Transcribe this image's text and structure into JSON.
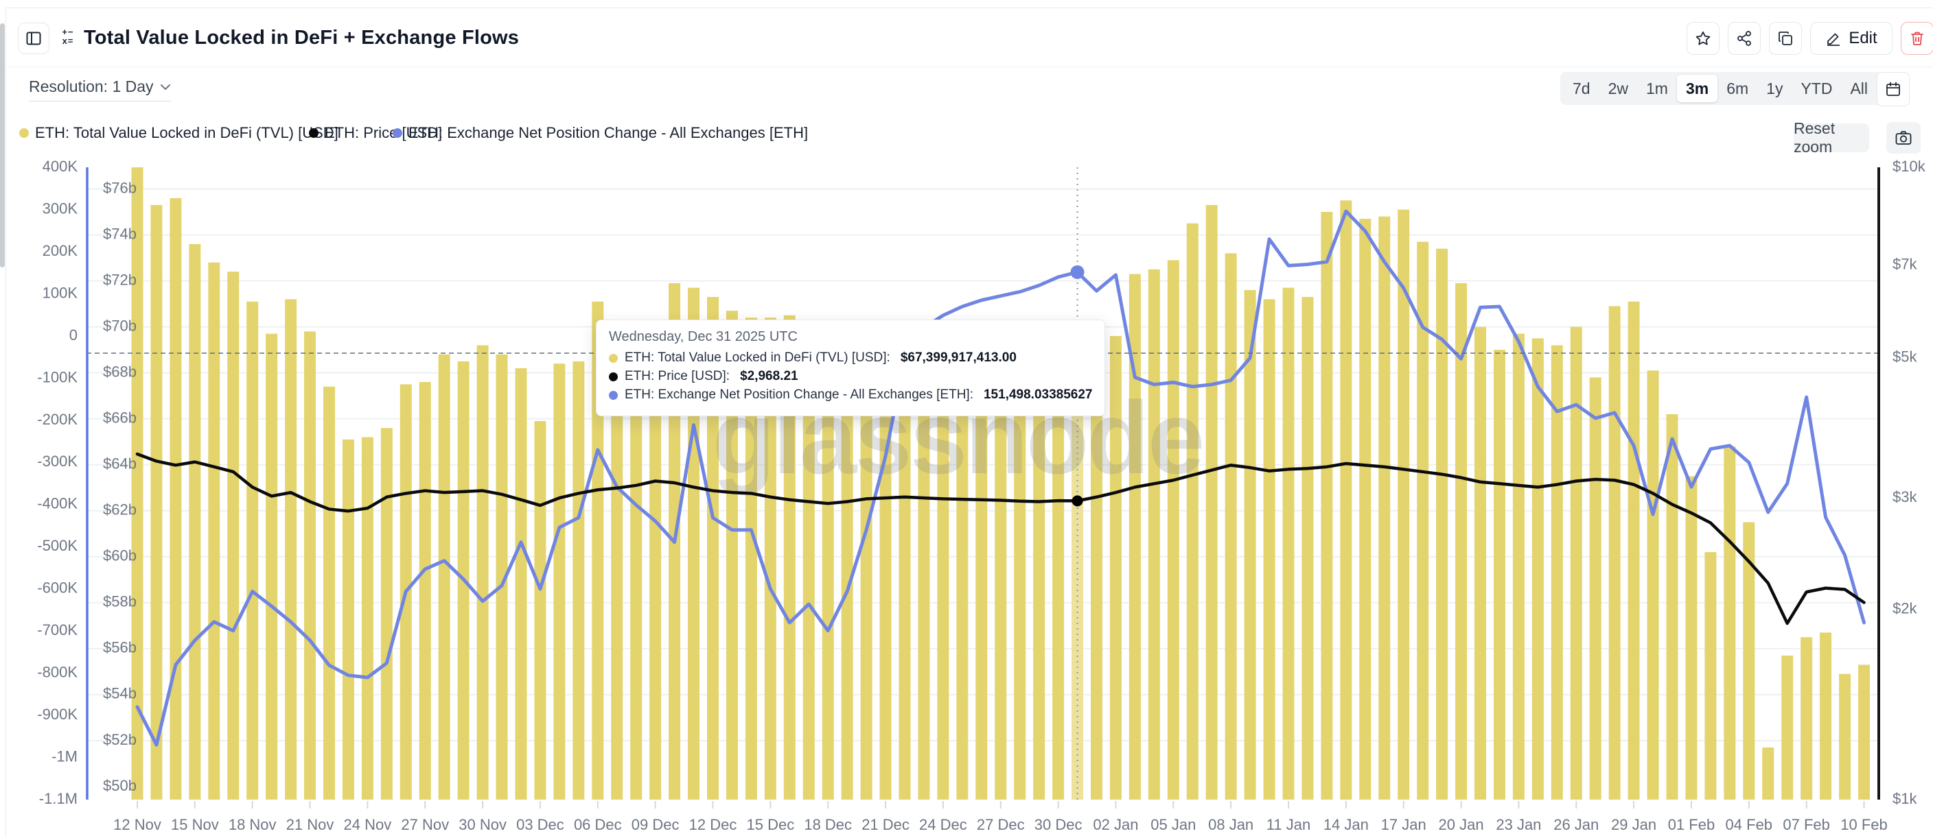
{
  "header": {
    "title": "Total Value Locked in DeFi + Exchange Flows",
    "edit_label": "Edit"
  },
  "toolbar": {
    "resolution_label": "Resolution: 1 Day",
    "ranges": [
      "7d",
      "2w",
      "1m",
      "3m",
      "6m",
      "1y",
      "YTD",
      "All"
    ],
    "active_range": "3m",
    "reset_zoom_label": "Reset zoom"
  },
  "legend": [
    {
      "label": "ETH: Total Value Locked in DeFi (TVL) [USD]",
      "color": "#e4d46d"
    },
    {
      "label": "ETH: Price [USD]",
      "color": "#0b0b0c"
    },
    {
      "label": "ETH: Exchange Net Position Change - All Exchanges [ETH]",
      "color": "#7085e2"
    }
  ],
  "tooltip": {
    "date": "Wednesday, Dec 31 2025 UTC",
    "rows": [
      {
        "label": "ETH: Total Value Locked in DeFi (TVL) [USD]:",
        "value": "$67,399,917,413.00",
        "color": "#e4d46d"
      },
      {
        "label": "ETH: Price [USD]:",
        "value": "$2,968.21",
        "color": "#0b0b0c"
      },
      {
        "label": "ETH: Exchange Net Position Change - All Exchanges [ETH]:",
        "value": "151,498.03385627",
        "color": "#7085e2"
      }
    ]
  },
  "watermark": "glassnode",
  "chart_data": {
    "type": "bar",
    "title": "Total Value Locked in DeFi + Exchange Flows",
    "x_tick_labels": [
      "12 Nov",
      "15 Nov",
      "18 Nov",
      "21 Nov",
      "24 Nov",
      "27 Nov",
      "30 Nov",
      "03 Dec",
      "06 Dec",
      "09 Dec",
      "12 Dec",
      "15 Dec",
      "18 Dec",
      "21 Dec",
      "24 Dec",
      "27 Dec",
      "30 Dec",
      "02 Jan",
      "05 Jan",
      "08 Jan",
      "11 Jan",
      "14 Jan",
      "17 Jan",
      "20 Jan",
      "23 Jan",
      "26 Jan",
      "29 Jan",
      "01 Feb",
      "04 Feb",
      "07 Feb",
      "10 Feb"
    ],
    "x_tick_every_days": 3,
    "hover": {
      "index": 49,
      "date": "Wednesday, Dec 31 2025 UTC",
      "tvl_usd": 67399917413.0,
      "price_usd": 2968.21,
      "flows_eth": 151498.03385627
    },
    "series": [
      {
        "name": "ETH: Total Value Locked in DeFi (TVL) [USD]",
        "type": "bar",
        "axis": "tvl_left_inner",
        "color": "#e4d46d",
        "hover_color": "#ece29c",
        "unit": "USD billions",
        "values": [
          77.2,
          75.3,
          75.6,
          73.6,
          72.8,
          72.4,
          71.1,
          69.7,
          71.2,
          69.8,
          67.4,
          65.1,
          65.2,
          65.6,
          67.5,
          67.6,
          68.8,
          68.5,
          69.2,
          68.8,
          68.2,
          65.9,
          68.4,
          68.5,
          71.1,
          70.3,
          69.7,
          69.8,
          71.9,
          71.7,
          71.3,
          70.7,
          70.4,
          70.4,
          70.5,
          69.1,
          67.8,
          66.9,
          66.4,
          66.1,
          66.3,
          66.8,
          67.0,
          67.2,
          67.0,
          66.8,
          66.5,
          67.0,
          67.2,
          67.4,
          68.3,
          69.6,
          72.3,
          72.5,
          72.9,
          74.5,
          75.3,
          73.2,
          71.6,
          71.2,
          71.7,
          71.3,
          75.0,
          75.5,
          74.7,
          74.8,
          75.1,
          73.7,
          73.4,
          71.9,
          70.0,
          69.0,
          69.7,
          69.5,
          69.2,
          70.0,
          67.8,
          70.9,
          71.1,
          68.1,
          66.2,
          63.5,
          60.2,
          64.8,
          61.5,
          51.7,
          55.7,
          56.5,
          56.7,
          54.9,
          55.3
        ]
      },
      {
        "name": "ETH: Price [USD]",
        "type": "line",
        "axis": "price_right_log",
        "color": "#0b0b0c",
        "unit": "USD",
        "values": [
          3520,
          3430,
          3380,
          3420,
          3360,
          3300,
          3120,
          3020,
          3060,
          2960,
          2880,
          2860,
          2890,
          3010,
          3050,
          3080,
          3060,
          3070,
          3080,
          3040,
          2980,
          2920,
          3000,
          3050,
          3090,
          3110,
          3140,
          3190,
          3170,
          3120,
          3080,
          3060,
          3050,
          3010,
          2980,
          2960,
          2940,
          2960,
          2990,
          3000,
          3010,
          3000,
          2990,
          2985,
          2980,
          2975,
          2965,
          2960,
          2970,
          2968.21,
          3010,
          3060,
          3120,
          3160,
          3200,
          3260,
          3320,
          3380,
          3350,
          3310,
          3330,
          3340,
          3360,
          3400,
          3380,
          3360,
          3330,
          3300,
          3270,
          3230,
          3180,
          3160,
          3140,
          3120,
          3150,
          3190,
          3210,
          3200,
          3150,
          3050,
          2930,
          2840,
          2740,
          2560,
          2380,
          2200,
          1900,
          2130,
          2160,
          2150,
          2050
        ]
      },
      {
        "name": "ETH: Exchange Net Position Change - All Exchanges [ETH]",
        "type": "line",
        "axis": "flows_left_outer",
        "color": "#7085e2",
        "unit": "thousand ETH",
        "values": [
          -880,
          -970,
          -780,
          -722,
          -678,
          -699,
          -606,
          -641,
          -678,
          -722,
          -781,
          -805,
          -810,
          -776,
          -606,
          -553,
          -533,
          -577,
          -629,
          -592,
          -489,
          -600,
          -454,
          -431,
          -270,
          -358,
          -401,
          -439,
          -489,
          -211,
          -431,
          -460,
          -460,
          -600,
          -680,
          -636,
          -699,
          -606,
          -460,
          -285,
          -50,
          20,
          49,
          70,
          85,
          95,
          105,
          120,
          140,
          151.498,
          107,
          145,
          -98,
          -115,
          -110,
          -120,
          -115,
          -105,
          -52,
          230,
          167,
          170,
          176,
          296,
          249,
          176,
          114,
          21,
          -8,
          -54,
          68,
          70,
          -13,
          -120,
          -179,
          -163,
          -195,
          -182,
          -260,
          -423,
          -244,
          -358,
          -268,
          -260,
          -300,
          -418,
          -350,
          -145,
          -430,
          -520,
          -680
        ]
      }
    ],
    "axes": {
      "flows_left_outer": {
        "labels": [
          "400K",
          "300K",
          "200K",
          "100K",
          "0",
          "-100K",
          "-200K",
          "-300K",
          "-400K",
          "-500K",
          "-600K",
          "-700K",
          "-800K",
          "-900K",
          "-1M",
          "-1.1M"
        ],
        "values_k": [
          400,
          300,
          200,
          100,
          0,
          -100,
          -200,
          -300,
          -400,
          -500,
          -600,
          -700,
          -800,
          -900,
          -1000,
          -1100
        ],
        "scale": "linear"
      },
      "tvl_left_inner": {
        "labels": [
          "$76b",
          "$74b",
          "$72b",
          "$70b",
          "$68b",
          "$66b",
          "$64b",
          "$62b",
          "$60b",
          "$58b",
          "$56b",
          "$54b",
          "$52b",
          "$50b"
        ],
        "values_b": [
          76,
          74,
          72,
          70,
          68,
          66,
          64,
          62,
          60,
          58,
          56,
          54,
          52,
          50
        ],
        "scale": "linear"
      },
      "price_right_log": {
        "labels": [
          "$10k",
          "$7k",
          "$5k",
          "$3k",
          "$2k",
          "$1k"
        ],
        "values": [
          10000,
          7000,
          5000,
          3000,
          2000,
          1000
        ],
        "scale": "log"
      }
    },
    "grid": "horizontal, every $2b of TVL axis",
    "legend_position": "top-left"
  }
}
